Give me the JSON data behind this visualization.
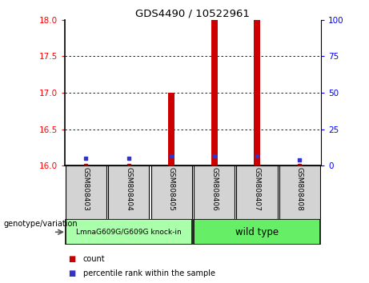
{
  "title": "GDS4490 / 10522961",
  "samples": [
    "GSM808403",
    "GSM808404",
    "GSM808405",
    "GSM808406",
    "GSM808407",
    "GSM808408"
  ],
  "group1_label": "LmnaG609G/G609G knock-in",
  "group2_label": "wild type",
  "group1_color": "#aaffaa",
  "group2_color": "#66ee66",
  "ylim_left": [
    16,
    18
  ],
  "ylim_right": [
    0,
    100
  ],
  "yticks_left": [
    16,
    16.5,
    17,
    17.5,
    18
  ],
  "yticks_right": [
    0,
    25,
    50,
    75,
    100
  ],
  "count_values": [
    16.02,
    16.02,
    17.0,
    18.0,
    18.0,
    16.02
  ],
  "count_base": 16,
  "percentile_values": [
    16.1,
    16.1,
    16.13,
    16.13,
    16.13,
    16.08
  ],
  "bar_color": "#cc0000",
  "dot_color": "#3333cc",
  "sample_box_color": "#d3d3d3",
  "legend_count_label": "count",
  "legend_pct_label": "percentile rank within the sample",
  "xlabel_text": "genotype/variation"
}
